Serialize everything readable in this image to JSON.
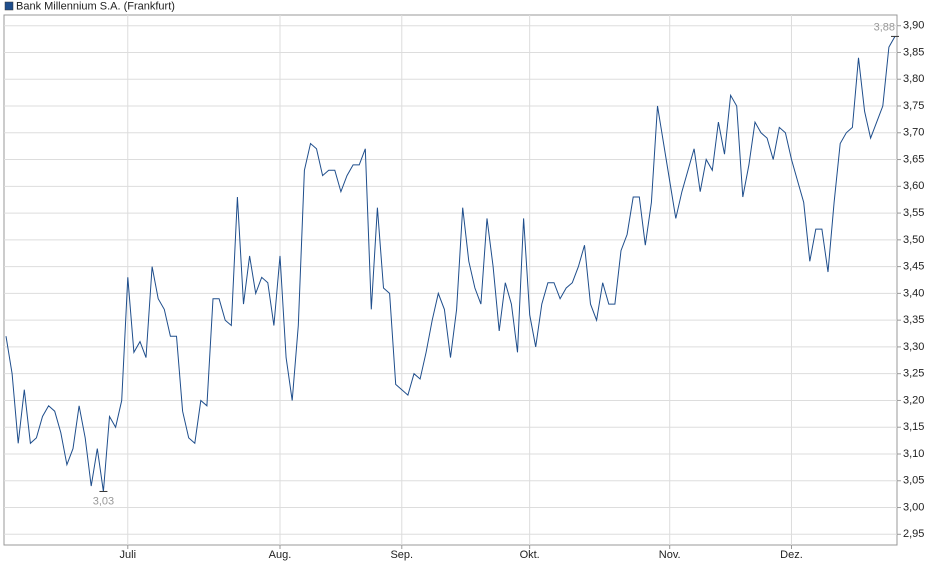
{
  "chart_data": {
    "type": "line",
    "series": [
      {
        "name": "Bank Millennium S.A. (Frankfurt)",
        "color": "#1f4e8c",
        "values": [
          3.32,
          3.25,
          3.12,
          3.22,
          3.12,
          3.13,
          3.17,
          3.19,
          3.18,
          3.14,
          3.08,
          3.11,
          3.19,
          3.13,
          3.04,
          3.11,
          3.03,
          3.17,
          3.15,
          3.2,
          3.43,
          3.29,
          3.31,
          3.28,
          3.45,
          3.39,
          3.37,
          3.32,
          3.32,
          3.18,
          3.13,
          3.12,
          3.2,
          3.19,
          3.39,
          3.39,
          3.35,
          3.34,
          3.58,
          3.38,
          3.47,
          3.4,
          3.43,
          3.42,
          3.34,
          3.47,
          3.28,
          3.2,
          3.34,
          3.63,
          3.68,
          3.67,
          3.62,
          3.63,
          3.63,
          3.59,
          3.62,
          3.64,
          3.64,
          3.67,
          3.37,
          3.56,
          3.41,
          3.4,
          3.23,
          3.22,
          3.21,
          3.25,
          3.24,
          3.29,
          3.35,
          3.4,
          3.37,
          3.28,
          3.37,
          3.56,
          3.46,
          3.41,
          3.38,
          3.54,
          3.45,
          3.33,
          3.42,
          3.38,
          3.29,
          3.54,
          3.36,
          3.3,
          3.38,
          3.42,
          3.42,
          3.39,
          3.41,
          3.42,
          3.45,
          3.49,
          3.38,
          3.35,
          3.42,
          3.38,
          3.38,
          3.48,
          3.51,
          3.58,
          3.58,
          3.49,
          3.57,
          3.75,
          3.68,
          3.61,
          3.54,
          3.59,
          3.63,
          3.67,
          3.59,
          3.65,
          3.63,
          3.72,
          3.66,
          3.77,
          3.75,
          3.58,
          3.64,
          3.72,
          3.7,
          3.69,
          3.65,
          3.71,
          3.7,
          3.65,
          3.61,
          3.57,
          3.46,
          3.52,
          3.52,
          3.44,
          3.57,
          3.68,
          3.7,
          3.71,
          3.84,
          3.74,
          3.69,
          3.72,
          3.75,
          3.86,
          3.88
        ]
      }
    ],
    "categories": [
      null,
      null,
      null,
      null,
      null,
      null,
      null,
      null,
      null,
      null,
      null,
      null,
      null,
      null,
      null,
      null,
      null,
      null,
      null,
      null,
      "Juli",
      null,
      null,
      null,
      null,
      null,
      null,
      null,
      null,
      null,
      null,
      null,
      null,
      null,
      null,
      null,
      null,
      null,
      null,
      null,
      null,
      null,
      null,
      null,
      null,
      "Aug.",
      null,
      null,
      null,
      null,
      null,
      null,
      null,
      null,
      null,
      null,
      null,
      null,
      null,
      null,
      null,
      null,
      null,
      null,
      null,
      "Sep.",
      null,
      null,
      null,
      null,
      null,
      null,
      null,
      null,
      null,
      null,
      null,
      null,
      null,
      null,
      null,
      null,
      null,
      null,
      null,
      null,
      "Okt.",
      null,
      null,
      null,
      null,
      null,
      null,
      null,
      null,
      null,
      null,
      null,
      null,
      null,
      null,
      null,
      null,
      null,
      null,
      null,
      null,
      null,
      null,
      "Nov.",
      null,
      null,
      null,
      null,
      null,
      null,
      null,
      null,
      null,
      null,
      null,
      null,
      null,
      null,
      null,
      null,
      null,
      null,
      null,
      "Dez.",
      null,
      null,
      null,
      null,
      null,
      null,
      null,
      null,
      null,
      null,
      null,
      null,
      null,
      null,
      null,
      null,
      null
    ],
    "annotations": [
      {
        "label": "3,03",
        "value": 3.03
      },
      {
        "label": "3,88",
        "value": 3.88
      }
    ],
    "ylim": [
      2.93,
      3.92
    ],
    "yticks": [
      {
        "value": 2.95,
        "label": "2,95"
      },
      {
        "value": 3.0,
        "label": "3,00"
      },
      {
        "value": 3.05,
        "label": "3,05"
      },
      {
        "value": 3.1,
        "label": "3,10"
      },
      {
        "value": 3.15,
        "label": "3,15"
      },
      {
        "value": 3.2,
        "label": "3,20"
      },
      {
        "value": 3.25,
        "label": "3,25"
      },
      {
        "value": 3.3,
        "label": "3,30"
      },
      {
        "value": 3.35,
        "label": "3,35"
      },
      {
        "value": 3.4,
        "label": "3,40"
      },
      {
        "value": 3.45,
        "label": "3,45"
      },
      {
        "value": 3.5,
        "label": "3,50"
      },
      {
        "value": 3.55,
        "label": "3,55"
      },
      {
        "value": 3.6,
        "label": "3,60"
      },
      {
        "value": 3.65,
        "label": "3,65"
      },
      {
        "value": 3.7,
        "label": "3,70"
      },
      {
        "value": 3.75,
        "label": "3,75"
      },
      {
        "value": 3.8,
        "label": "3,80"
      },
      {
        "value": 3.85,
        "label": "3,85"
      },
      {
        "value": 3.9,
        "label": "3,90"
      }
    ],
    "grid": true,
    "legend": "top-left"
  }
}
